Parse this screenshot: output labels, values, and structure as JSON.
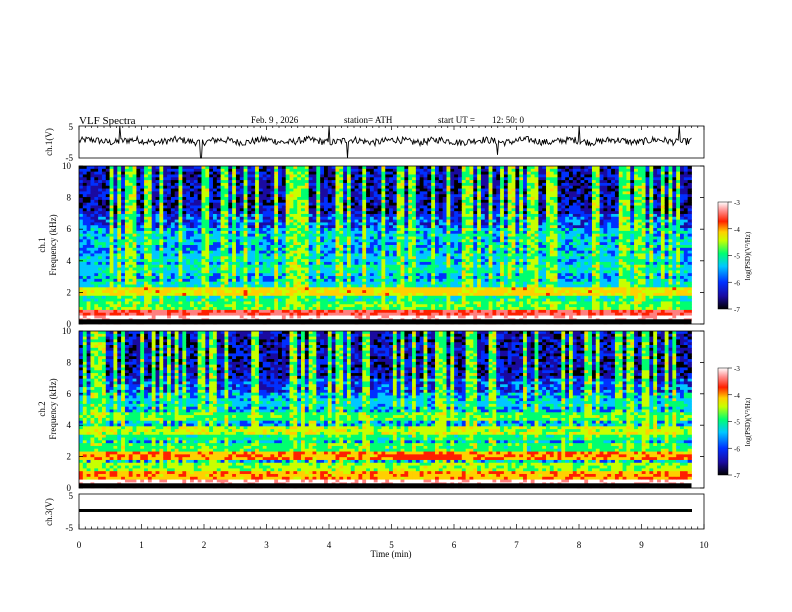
{
  "header": {
    "title": "VLF  Spectra",
    "date": "Feb. 9  , 2026",
    "station": "station= ATH",
    "start_label": "start  UT  =",
    "start_time": "12: 50: 0"
  },
  "colors": {
    "trace": "#000000",
    "background": "#ffffff",
    "colormap": [
      "#000000",
      "#1a0aa0",
      "#0030ff",
      "#00c8ff",
      "#00ff70",
      "#c8ff00",
      "#ffd000",
      "#ff2000",
      "#ff8080",
      "#ffffff"
    ]
  },
  "chart_data": [
    {
      "type": "line",
      "ylabel": "ch.1(V)",
      "y_ticks": [
        "5",
        "-5"
      ],
      "ylim": [
        -5,
        5
      ],
      "note_values": "noisy waveform near 0 V with occasional spikes",
      "baseline": 0.3,
      "spikes": [
        [
          0.65,
          5
        ],
        [
          1.95,
          -5
        ],
        [
          4.0,
          5
        ],
        [
          4.3,
          -5
        ],
        [
          6.7,
          -4
        ],
        [
          8.0,
          5
        ],
        [
          9.6,
          5
        ]
      ]
    },
    {
      "type": "heatmap",
      "ylabel_outer": "ch.1",
      "ylabel": "Frequency (kHz)",
      "y_ticks": [
        "0",
        "2",
        "4",
        "6",
        "8",
        "10"
      ],
      "ylim": [
        0,
        10
      ],
      "xlim": [
        0,
        9.8
      ],
      "colorbar": {
        "label": "log(PSD)(V²/Hz)",
        "ticks": [
          "-3",
          "-4",
          "-5",
          "-6",
          "-7"
        ],
        "range": [
          -7,
          -3
        ]
      },
      "bands_khz": [
        {
          "f": 0.3,
          "level": -3.0
        },
        {
          "f": 0.7,
          "level": -3.5
        },
        {
          "f": 1.2,
          "level": -4.8
        },
        {
          "f": 1.7,
          "level": -5.2
        },
        {
          "f": 2.1,
          "level": -4.2
        },
        {
          "f": 2.5,
          "level": -5.4
        },
        {
          "f": 3.5,
          "level": -5.3
        },
        {
          "f": 4.2,
          "level": -5.6
        },
        {
          "f": 5.5,
          "level": -5.8
        }
      ],
      "event": {
        "t_start": 5.0,
        "t_end": 6.1,
        "f": 2.1,
        "level": -4.0
      }
    },
    {
      "type": "heatmap",
      "ylabel_outer": "ch.2",
      "ylabel": "Frequency (kHz)",
      "y_ticks": [
        "0",
        "2",
        "4",
        "6",
        "8",
        "10"
      ],
      "ylim": [
        0,
        10
      ],
      "xlim": [
        0,
        9.8
      ],
      "colorbar": {
        "label": "log(PSD)(V²/Hz)",
        "ticks": [
          "-3",
          "-4",
          "-5",
          "-6",
          "-7"
        ],
        "range": [
          -7,
          -3
        ]
      },
      "bands_khz": [
        {
          "f": 0.3,
          "level": -3.0
        },
        {
          "f": 0.8,
          "level": -4.0
        },
        {
          "f": 1.4,
          "level": -4.6
        },
        {
          "f": 2.0,
          "level": -4.0
        },
        {
          "f": 2.6,
          "level": -4.9
        },
        {
          "f": 3.2,
          "level": -5.0
        },
        {
          "f": 3.6,
          "level": -4.5
        },
        {
          "f": 4.6,
          "level": -4.8
        },
        {
          "f": 5.5,
          "level": -5.6
        }
      ],
      "event": {
        "t_start": 5.0,
        "t_end": 6.1,
        "f": 2.0,
        "level": -3.8
      }
    },
    {
      "type": "line",
      "ylabel": "ch.3(V)",
      "y_ticks": [
        "5",
        "-5"
      ],
      "ylim": [
        -5,
        5
      ],
      "baseline": -1.5,
      "xlabel": "Time  (min)",
      "x_ticks": [
        "0",
        "1",
        "2",
        "3",
        "4",
        "5",
        "6",
        "7",
        "8",
        "9",
        "10"
      ],
      "xlim": [
        0,
        10
      ],
      "data_end_min": 9.8
    }
  ]
}
